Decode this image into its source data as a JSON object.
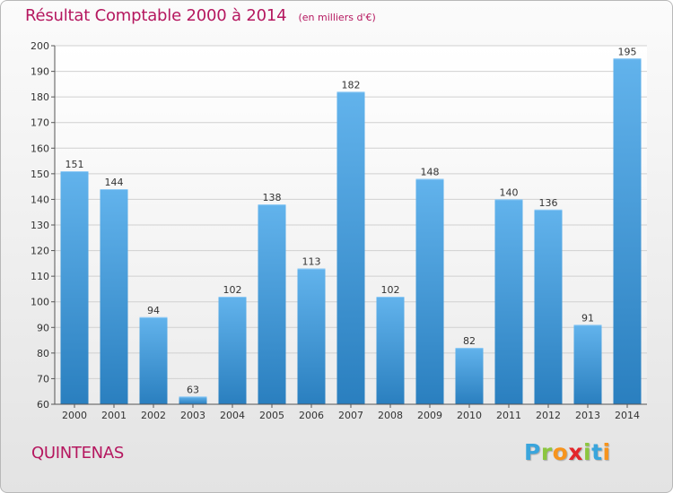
{
  "title": "Résultat Comptable 2000 à 2014",
  "subtitle": "(en milliers d'€)",
  "commune": "QUINTENAS",
  "logo": {
    "letters": [
      "P",
      "r",
      "o",
      "x",
      "i",
      "t",
      "i"
    ],
    "colors": [
      "#3aa5dc",
      "#8cc63f",
      "#f7941d",
      "#e3262b",
      "#8cc63f",
      "#3aa5dc",
      "#f7941d"
    ]
  },
  "colors": {
    "title": "#b5175f",
    "bar_light": "#62b3ec",
    "bar_dark": "#2a7fbf"
  },
  "chart_data": {
    "type": "bar",
    "categories": [
      "2000",
      "2001",
      "2002",
      "2003",
      "2004",
      "2005",
      "2006",
      "2007",
      "2008",
      "2009",
      "2010",
      "2011",
      "2012",
      "2013",
      "2014"
    ],
    "values": [
      151,
      144,
      94,
      63,
      102,
      138,
      113,
      182,
      102,
      148,
      82,
      140,
      136,
      91,
      195
    ],
    "ylim": [
      60,
      200
    ],
    "yticks": [
      60,
      70,
      80,
      90,
      100,
      110,
      120,
      130,
      140,
      150,
      160,
      170,
      180,
      190,
      200
    ],
    "grid": true,
    "data_labels": true
  }
}
